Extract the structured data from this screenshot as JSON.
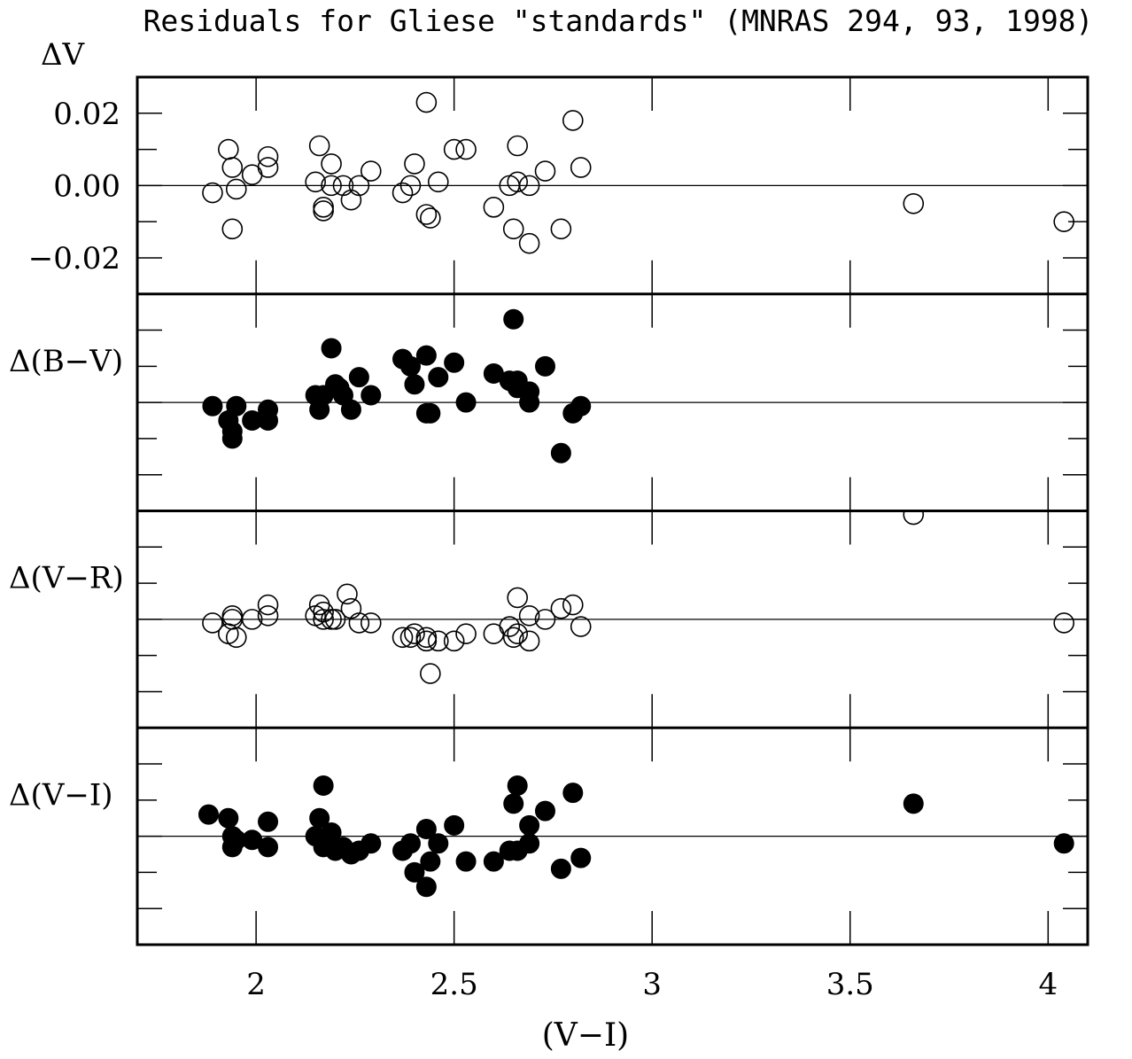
{
  "chart_data": {
    "type": "scatter",
    "title": "Residuals for Gliese \"standards\" (MNRAS 294, 93, 1998)",
    "xlabel": "(V−I)",
    "xlim": [
      1.7,
      4.1
    ],
    "x_ticks": [
      2,
      2.5,
      3,
      3.5,
      4
    ],
    "x_tick_labels": [
      "2",
      "2.5",
      "3",
      "3.5",
      "4"
    ],
    "grid": false,
    "panels": [
      {
        "ylabel": "ΔV",
        "ylim": [
          -0.03,
          0.03
        ],
        "y_ticks": [
          -0.02,
          0,
          0.02
        ],
        "y_tick_labels": [
          "−0.02",
          "0.00",
          "0.02"
        ],
        "marker": "open",
        "points": [
          [
            1.89,
            -0.002
          ],
          [
            1.93,
            0.01
          ],
          [
            1.94,
            0.005
          ],
          [
            1.94,
            -0.012
          ],
          [
            1.95,
            -0.001
          ],
          [
            1.99,
            0.003
          ],
          [
            2.03,
            0.008
          ],
          [
            2.03,
            0.005
          ],
          [
            2.15,
            0.001
          ],
          [
            2.16,
            0.011
          ],
          [
            2.17,
            -0.006
          ],
          [
            2.17,
            -0.007
          ],
          [
            2.19,
            0.006
          ],
          [
            2.19,
            0.0
          ],
          [
            2.22,
            0.0
          ],
          [
            2.24,
            -0.004
          ],
          [
            2.26,
            0.0
          ],
          [
            2.29,
            0.004
          ],
          [
            2.37,
            -0.002
          ],
          [
            2.39,
            0.0
          ],
          [
            2.4,
            0.006
          ],
          [
            2.43,
            0.023
          ],
          [
            2.43,
            -0.008
          ],
          [
            2.44,
            -0.009
          ],
          [
            2.46,
            0.001
          ],
          [
            2.5,
            0.01
          ],
          [
            2.53,
            0.01
          ],
          [
            2.6,
            -0.006
          ],
          [
            2.64,
            0.0
          ],
          [
            2.65,
            -0.012
          ],
          [
            2.66,
            0.011
          ],
          [
            2.66,
            0.001
          ],
          [
            2.69,
            0.0
          ],
          [
            2.69,
            -0.016
          ],
          [
            2.73,
            0.004
          ],
          [
            2.77,
            -0.012
          ],
          [
            2.8,
            0.018
          ],
          [
            2.82,
            0.005
          ],
          [
            3.66,
            -0.005
          ],
          [
            4.04,
            -0.01
          ]
        ]
      },
      {
        "ylabel": "Δ(B−V)",
        "ylim": [
          -0.03,
          0.03
        ],
        "marker": "filled",
        "points": [
          [
            1.89,
            -0.001
          ],
          [
            1.93,
            -0.005
          ],
          [
            1.94,
            -0.008
          ],
          [
            1.94,
            -0.01
          ],
          [
            1.95,
            -0.001
          ],
          [
            1.99,
            -0.005
          ],
          [
            2.03,
            -0.002
          ],
          [
            2.03,
            -0.005
          ],
          [
            2.15,
            0.002
          ],
          [
            2.16,
            -0.002
          ],
          [
            2.17,
            0.002
          ],
          [
            2.19,
            0.015
          ],
          [
            2.2,
            0.005
          ],
          [
            2.21,
            0.004
          ],
          [
            2.22,
            0.002
          ],
          [
            2.24,
            -0.002
          ],
          [
            2.26,
            0.007
          ],
          [
            2.29,
            0.002
          ],
          [
            2.37,
            0.012
          ],
          [
            2.39,
            0.01
          ],
          [
            2.4,
            0.005
          ],
          [
            2.43,
            0.013
          ],
          [
            2.43,
            -0.003
          ],
          [
            2.44,
            -0.003
          ],
          [
            2.46,
            0.007
          ],
          [
            2.5,
            0.011
          ],
          [
            2.53,
            0.0
          ],
          [
            2.6,
            0.008
          ],
          [
            2.64,
            0.006
          ],
          [
            2.65,
            0.023
          ],
          [
            2.66,
            0.006
          ],
          [
            2.66,
            0.004
          ],
          [
            2.69,
            0.003
          ],
          [
            2.69,
            0.0
          ],
          [
            2.73,
            0.01
          ],
          [
            2.77,
            -0.014
          ],
          [
            2.8,
            -0.003
          ],
          [
            2.82,
            -0.001
          ]
        ]
      },
      {
        "ylabel": "Δ(V−R)",
        "ylim": [
          -0.03,
          0.03
        ],
        "marker": "open",
        "points": [
          [
            1.89,
            -0.001
          ],
          [
            1.93,
            -0.004
          ],
          [
            1.94,
            0.001
          ],
          [
            1.94,
            0.0
          ],
          [
            1.95,
            -0.005
          ],
          [
            1.99,
            0.0
          ],
          [
            2.03,
            0.004
          ],
          [
            2.03,
            0.001
          ],
          [
            2.15,
            0.001
          ],
          [
            2.16,
            0.004
          ],
          [
            2.17,
            0.0
          ],
          [
            2.17,
            0.002
          ],
          [
            2.19,
            0.0
          ],
          [
            2.2,
            0.0
          ],
          [
            2.23,
            0.007
          ],
          [
            2.24,
            0.003
          ],
          [
            2.26,
            -0.001
          ],
          [
            2.29,
            -0.001
          ],
          [
            2.37,
            -0.005
          ],
          [
            2.39,
            -0.005
          ],
          [
            2.4,
            -0.004
          ],
          [
            2.43,
            -0.005
          ],
          [
            2.43,
            -0.006
          ],
          [
            2.44,
            -0.015
          ],
          [
            2.46,
            -0.006
          ],
          [
            2.5,
            -0.006
          ],
          [
            2.53,
            -0.004
          ],
          [
            2.6,
            -0.004
          ],
          [
            2.64,
            -0.002
          ],
          [
            2.65,
            -0.005
          ],
          [
            2.66,
            -0.004
          ],
          [
            2.66,
            0.006
          ],
          [
            2.69,
            0.001
          ],
          [
            2.69,
            -0.006
          ],
          [
            2.73,
            0.0
          ],
          [
            2.77,
            0.003
          ],
          [
            2.8,
            0.004
          ],
          [
            2.82,
            -0.002
          ],
          [
            3.66,
            0.029
          ],
          [
            4.04,
            -0.001
          ]
        ]
      },
      {
        "ylabel": "Δ(V−I)",
        "ylim": [
          -0.03,
          0.03
        ],
        "marker": "filled",
        "points": [
          [
            1.88,
            0.006
          ],
          [
            1.93,
            0.005
          ],
          [
            1.94,
            0.0
          ],
          [
            1.94,
            -0.003
          ],
          [
            1.95,
            -0.001
          ],
          [
            1.99,
            -0.001
          ],
          [
            2.03,
            0.004
          ],
          [
            2.03,
            -0.003
          ],
          [
            2.15,
            0.0
          ],
          [
            2.16,
            0.005
          ],
          [
            2.17,
            0.014
          ],
          [
            2.17,
            -0.003
          ],
          [
            2.19,
            0.001
          ],
          [
            2.2,
            -0.004
          ],
          [
            2.22,
            -0.003
          ],
          [
            2.24,
            -0.005
          ],
          [
            2.26,
            -0.004
          ],
          [
            2.29,
            -0.002
          ],
          [
            2.37,
            -0.004
          ],
          [
            2.39,
            -0.002
          ],
          [
            2.4,
            -0.01
          ],
          [
            2.43,
            -0.014
          ],
          [
            2.43,
            0.002
          ],
          [
            2.44,
            -0.007
          ],
          [
            2.46,
            -0.002
          ],
          [
            2.5,
            0.003
          ],
          [
            2.53,
            -0.007
          ],
          [
            2.6,
            -0.007
          ],
          [
            2.64,
            -0.004
          ],
          [
            2.65,
            0.009
          ],
          [
            2.66,
            0.014
          ],
          [
            2.66,
            -0.004
          ],
          [
            2.69,
            0.003
          ],
          [
            2.69,
            -0.002
          ],
          [
            2.73,
            0.007
          ],
          [
            2.77,
            -0.009
          ],
          [
            2.8,
            0.012
          ],
          [
            2.82,
            -0.006
          ],
          [
            3.66,
            0.009
          ],
          [
            4.04,
            -0.002
          ]
        ]
      }
    ]
  }
}
